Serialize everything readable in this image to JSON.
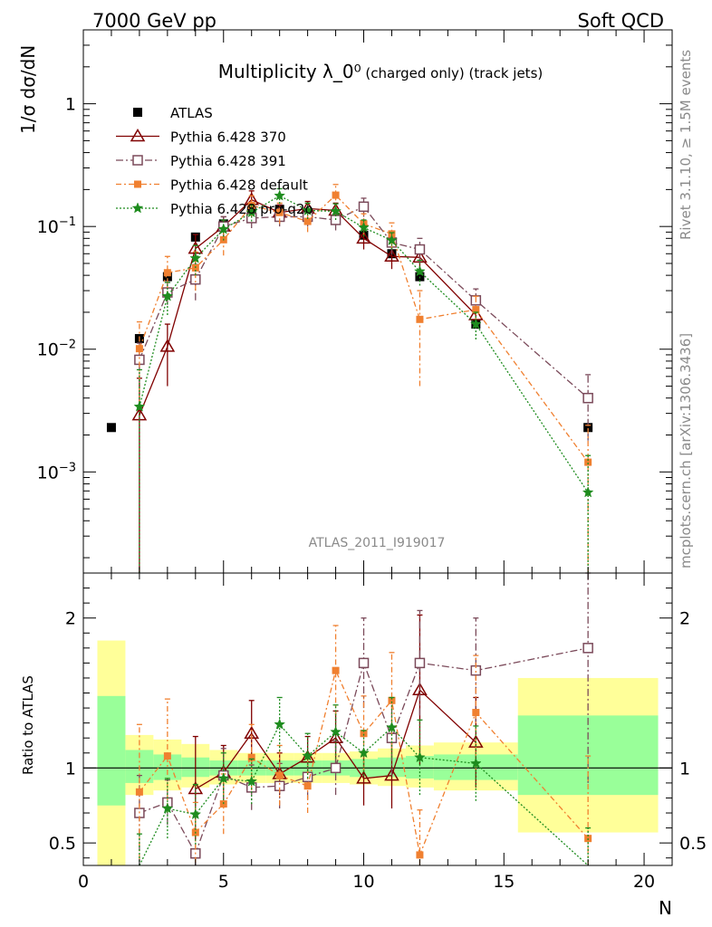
{
  "header": {
    "left": "7000 GeV pp",
    "right": "Soft QCD"
  },
  "side": {
    "rivet": "Rivet 3.1.10, ≥ 1.5M events",
    "site": "mcplots.cern.ch [arXiv:1306.3436]"
  },
  "watermark": "ATLAS_2011_I919017",
  "chart_data": [
    {
      "type": "scatter",
      "panel": "main",
      "title": "Multiplicity λ_0⁰",
      "subtitle": "(charged only) (track jets)",
      "ylabel": "1/σ dσ/dN",
      "yscale": "log",
      "xlim": [
        0,
        21
      ],
      "ylim": [
        0.00015,
        4
      ],
      "ytick_labels": [
        "1",
        "10⁻¹",
        "10⁻²",
        "10⁻³"
      ],
      "legend": {
        "placement": "top-left"
      },
      "series": [
        {
          "name": "ATLAS",
          "color": "#000000",
          "marker": "square",
          "x": [
            1,
            2,
            3,
            4,
            5,
            6,
            7,
            8,
            9,
            10,
            11,
            12,
            14,
            18
          ],
          "y": [
            0.0023,
            0.0122,
            0.039,
            0.082,
            0.105,
            0.135,
            0.138,
            0.128,
            0.113,
            0.085,
            0.06,
            0.039,
            0.016,
            0.0023
          ]
        },
        {
          "name": "Pythia 6.428 370",
          "color": "#800000",
          "marker": "triangle-open",
          "x": [
            2,
            3,
            4,
            5,
            6,
            7,
            8,
            9,
            10,
            11,
            12,
            14
          ],
          "y": [
            0.0029,
            0.0105,
            0.066,
            0.1,
            0.165,
            0.13,
            0.14,
            0.135,
            0.08,
            0.057,
            0.056,
            0.019
          ],
          "err": [
            0.0029,
            0.0055,
            0.02,
            0.02,
            0.03,
            0.02,
            0.02,
            0.02,
            0.015,
            0.012,
            0.013,
            0.004
          ]
        },
        {
          "name": "Pythia 6.428 391",
          "color": "#7b4a5a",
          "marker": "square-open",
          "x": [
            2,
            3,
            4,
            5,
            6,
            7,
            8,
            9,
            10,
            11,
            12,
            14,
            18
          ],
          "y": [
            0.0082,
            0.029,
            0.037,
            0.1,
            0.117,
            0.12,
            0.12,
            0.113,
            0.145,
            0.074,
            0.065,
            0.025,
            0.004
          ],
          "err": [
            0.003,
            0.006,
            0.012,
            0.02,
            0.02,
            0.02,
            0.02,
            0.02,
            0.025,
            0.015,
            0.015,
            0.006,
            0.0022
          ]
        },
        {
          "name": "Pythia 6.428 default",
          "color": "#f08030",
          "marker": "filled-square",
          "x": [
            2,
            3,
            4,
            5,
            6,
            7,
            8,
            9,
            10,
            11,
            12,
            14,
            18
          ],
          "y": [
            0.0101,
            0.042,
            0.046,
            0.078,
            0.148,
            0.13,
            0.11,
            0.18,
            0.105,
            0.087,
            0.0175,
            0.021,
            0.0012
          ],
          "err": [
            0.0066,
            0.015,
            0.016,
            0.02,
            0.03,
            0.025,
            0.02,
            0.04,
            0.022,
            0.02,
            0.0125,
            0.006,
            0.0012
          ]
        },
        {
          "name": "Pythia 6.428 pro-q2o",
          "color": "#1e8c1e",
          "marker": "star",
          "x": [
            2,
            3,
            4,
            5,
            6,
            7,
            8,
            9,
            10,
            11,
            12,
            14,
            18
          ],
          "y": [
            0.0034,
            0.027,
            0.055,
            0.095,
            0.13,
            0.178,
            0.135,
            0.133,
            0.098,
            0.077,
            0.043,
            0.016,
            0.00068
          ],
          "err": [
            0.0034,
            0.008,
            0.015,
            0.018,
            0.02,
            0.025,
            0.02,
            0.02,
            0.015,
            0.012,
            0.01,
            0.004,
            0.00068
          ]
        }
      ]
    },
    {
      "type": "line",
      "panel": "ratio",
      "ylabel": "Ratio to ATLAS",
      "xlabel": "N",
      "ylim": [
        0.35,
        2.3
      ],
      "xlim": [
        0,
        21
      ],
      "ytick_labels": [
        "0.5",
        "1",
        "2"
      ],
      "xtick_labels": [
        "0",
        "5",
        "10",
        "15",
        "20"
      ],
      "bands": [
        {
          "x0": 0.5,
          "x1": 1.5,
          "inner": [
            0.75,
            1.48
          ],
          "outer": [
            0.35,
            1.85
          ]
        },
        {
          "x0": 1.5,
          "x1": 2.5,
          "inner": [
            0.9,
            1.12
          ],
          "outer": [
            0.82,
            1.22
          ]
        },
        {
          "x0": 2.5,
          "x1": 3.5,
          "inner": [
            0.92,
            1.09
          ],
          "outer": [
            0.85,
            1.19
          ]
        },
        {
          "x0": 3.5,
          "x1": 4.5,
          "inner": [
            0.94,
            1.07
          ],
          "outer": [
            0.87,
            1.16
          ]
        },
        {
          "x0": 4.5,
          "x1": 5.5,
          "inner": [
            0.95,
            1.05
          ],
          "outer": [
            0.89,
            1.12
          ]
        },
        {
          "x0": 5.5,
          "x1": 6.5,
          "inner": [
            0.95,
            1.05
          ],
          "outer": [
            0.9,
            1.1
          ]
        },
        {
          "x0": 6.5,
          "x1": 7.5,
          "inner": [
            0.95,
            1.05
          ],
          "outer": [
            0.9,
            1.1
          ]
        },
        {
          "x0": 7.5,
          "x1": 8.5,
          "inner": [
            0.95,
            1.05
          ],
          "outer": [
            0.9,
            1.1
          ]
        },
        {
          "x0": 8.5,
          "x1": 9.5,
          "inner": [
            0.95,
            1.05
          ],
          "outer": [
            0.9,
            1.1
          ]
        },
        {
          "x0": 9.5,
          "x1": 10.5,
          "inner": [
            0.94,
            1.06
          ],
          "outer": [
            0.89,
            1.11
          ]
        },
        {
          "x0": 10.5,
          "x1": 11.5,
          "inner": [
            0.94,
            1.07
          ],
          "outer": [
            0.88,
            1.13
          ]
        },
        {
          "x0": 11.5,
          "x1": 12.5,
          "inner": [
            0.93,
            1.08
          ],
          "outer": [
            0.87,
            1.15
          ]
        },
        {
          "x0": 12.5,
          "x1": 15.5,
          "inner": [
            0.92,
            1.09
          ],
          "outer": [
            0.85,
            1.17
          ]
        },
        {
          "x0": 15.5,
          "x1": 20.5,
          "inner": [
            0.82,
            1.35
          ],
          "outer": [
            0.57,
            1.6
          ]
        }
      ],
      "series": [
        {
          "name": "Pythia 6.428 370",
          "color": "#800000",
          "x": [
            4,
            5,
            6,
            7,
            8,
            9,
            10,
            11,
            12,
            14
          ],
          "y": [
            0.86,
            0.97,
            1.23,
            0.96,
            1.07,
            1.2,
            0.93,
            0.95,
            1.52,
            1.17
          ],
          "err": [
            0.35,
            0.18,
            0.22,
            0.14,
            0.14,
            0.18,
            0.18,
            0.22,
            0.5,
            0.3
          ]
        },
        {
          "name": "Pythia 6.428 391",
          "color": "#7b4a5a",
          "x": [
            2,
            3,
            4,
            5,
            6,
            7,
            8,
            9,
            10,
            11,
            12,
            14,
            18
          ],
          "y": [
            0.7,
            0.77,
            0.43,
            0.95,
            0.87,
            0.88,
            0.94,
            1.0,
            1.7,
            1.2,
            1.7,
            1.65,
            1.8
          ],
          "err": [
            0.25,
            0.15,
            0.15,
            0.18,
            0.15,
            0.15,
            0.15,
            0.18,
            0.3,
            0.25,
            0.35,
            0.35,
            0.9
          ]
        },
        {
          "name": "Pythia 6.428 default",
          "color": "#f08030",
          "x": [
            2,
            3,
            4,
            5,
            6,
            7,
            8,
            9,
            10,
            11,
            12,
            14,
            18
          ],
          "y": [
            0.84,
            1.08,
            0.57,
            0.76,
            1.07,
            0.95,
            0.88,
            1.65,
            1.23,
            1.45,
            0.42,
            1.37,
            0.53
          ],
          "err": [
            0.45,
            0.38,
            0.2,
            0.2,
            0.22,
            0.2,
            0.18,
            0.3,
            0.25,
            0.32,
            0.3,
            0.38,
            0.55
          ]
        },
        {
          "name": "Pythia 6.428 pro-q2o",
          "color": "#1e8c1e",
          "x": [
            2,
            3,
            4,
            5,
            6,
            7,
            8,
            9,
            10,
            11,
            12,
            14,
            18
          ],
          "y": [
            0.28,
            0.73,
            0.69,
            0.93,
            0.91,
            1.29,
            1.08,
            1.24,
            1.1,
            1.27,
            1.07,
            1.03,
            0.3
          ],
          "err": [
            0.28,
            0.2,
            0.2,
            0.17,
            0.15,
            0.18,
            0.15,
            0.18,
            0.15,
            0.2,
            0.25,
            0.25,
            0.3
          ]
        }
      ]
    }
  ]
}
